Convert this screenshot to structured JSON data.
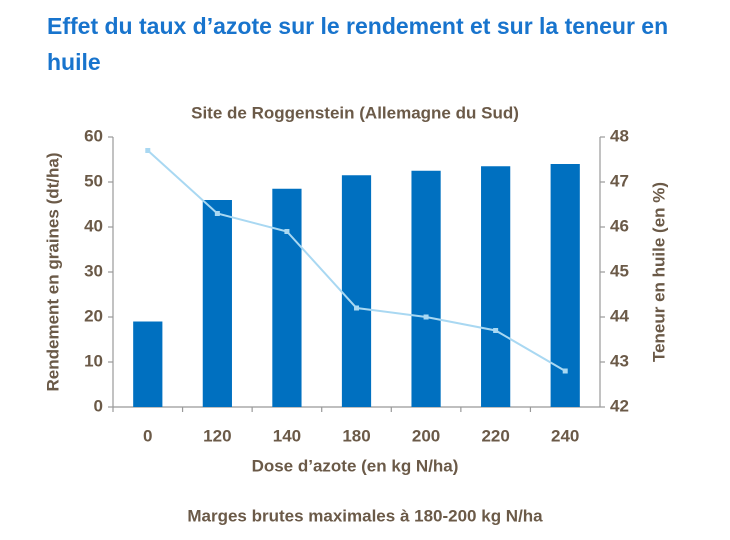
{
  "chart_data": {
    "type": "bar-line",
    "title": "Effet du taux d’azote sur le rendement et sur la teneur en huile",
    "subtitle": "Site de Roggenstein (Allemagne du Sud)",
    "caption": "Marges brutes maximales à 180-200 kg N/ha",
    "x_label": "Dose d’azote (en kg N/ha)",
    "y_label": "Rendement en graines (dt/ha)",
    "y2_label": "Teneur en huile (en %)",
    "categories": [
      "0",
      "120",
      "140",
      "180",
      "200",
      "220",
      "240"
    ],
    "series": [
      {
        "type": "bar",
        "color": "#0070c0",
        "values": [
          19,
          46,
          48.5,
          51.5,
          52.5,
          53.5,
          54
        ]
      },
      {
        "type": "line",
        "axis": "y2",
        "color": "#a9d8f2",
        "values": [
          47.7,
          46.3,
          45.9,
          44.2,
          44.0,
          43.7,
          42.8
        ]
      }
    ],
    "ylim": [
      0,
      60
    ],
    "yticks": [
      0,
      10,
      20,
      30,
      40,
      50,
      60
    ],
    "y2lim": [
      42,
      48
    ],
    "y2ticks": [
      42,
      43,
      44,
      45,
      46,
      47,
      48
    ],
    "grid": false
  }
}
